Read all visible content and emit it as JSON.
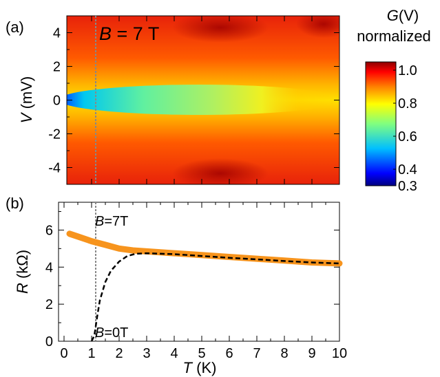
{
  "chart_data": [
    {
      "panel": "(a)",
      "type": "heatmap",
      "annotation_B": "B",
      "annotation_rest": " = 7 T",
      "xlim": [
        -0.2,
        10
      ],
      "ylim": [
        -5,
        5
      ],
      "ylabel_italic": "V",
      "ylabel_rest": " (mV)",
      "yticks": [
        -4,
        -2,
        0,
        2,
        4
      ],
      "ytick_labels": [
        "-4",
        "-2",
        "0",
        "2",
        "4"
      ],
      "reference_line_T": 1.15,
      "colorbar": {
        "title_italic": "G",
        "title_rest": "(V)",
        "title_line2": "normalized",
        "range": [
          0.3,
          1.05
        ],
        "ticks": [
          0.3,
          0.4,
          0.6,
          0.8,
          1.0
        ],
        "tick_labels": [
          "0.3",
          "0.4",
          "0.6",
          "0.8",
          "1.0"
        ],
        "colors": [
          "#00007f",
          "#0000ff",
          "#00bfff",
          "#80ff80",
          "#ffff00",
          "#ff8000",
          "#ff0000",
          "#8b0000"
        ]
      },
      "zero_bias_conductance": {
        "T": [
          0,
          0.5,
          1,
          2,
          3,
          4,
          5,
          6,
          7,
          8,
          10
        ],
        "G0": [
          0.3,
          0.5,
          0.62,
          0.68,
          0.72,
          0.76,
          0.79,
          0.82,
          0.85,
          0.95,
          1.0
        ]
      }
    },
    {
      "panel": "(b)",
      "type": "line",
      "xlabel_italic": "T",
      "xlabel_rest": " (K)",
      "ylabel_italic": "R",
      "ylabel_rest": " (kΩ)",
      "xlim": [
        -0.2,
        10
      ],
      "ylim": [
        0,
        7.5
      ],
      "xticks": [
        0,
        1,
        2,
        3,
        4,
        5,
        6,
        7,
        8,
        9,
        10
      ],
      "xtick_labels": [
        "0",
        "1",
        "2",
        "3",
        "4",
        "5",
        "6",
        "7",
        "8",
        "9",
        "10"
      ],
      "yticks": [
        0,
        2,
        4,
        6
      ],
      "ytick_labels": [
        "0",
        "2",
        "4",
        "6"
      ],
      "reference_line_T": 1.15,
      "series": [
        {
          "label_B": "B",
          "label_rest": "=7T",
          "color": "#f7941d",
          "x": [
            0.2,
            0.5,
            1.0,
            1.5,
            2.0,
            2.5,
            3.0,
            4.0,
            5.0,
            6.0,
            7.0,
            8.0,
            9.0,
            10.0
          ],
          "y": [
            5.8,
            5.65,
            5.4,
            5.2,
            5.0,
            4.9,
            4.85,
            4.75,
            4.65,
            4.55,
            4.45,
            4.35,
            4.25,
            4.2
          ]
        },
        {
          "label_B": "B",
          "label_rest": "=0T",
          "color": "#000000",
          "x": [
            1.0,
            1.1,
            1.2,
            1.3,
            1.5,
            1.7,
            2.0,
            2.3,
            2.6,
            3.0,
            4.0,
            5.0,
            6.0,
            7.0,
            8.0,
            9.0,
            10.0
          ],
          "y": [
            0,
            0.3,
            1.3,
            2.2,
            3.2,
            3.8,
            4.3,
            4.6,
            4.72,
            4.75,
            4.7,
            4.6,
            4.5,
            4.42,
            4.33,
            4.25,
            4.2
          ]
        }
      ]
    }
  ]
}
